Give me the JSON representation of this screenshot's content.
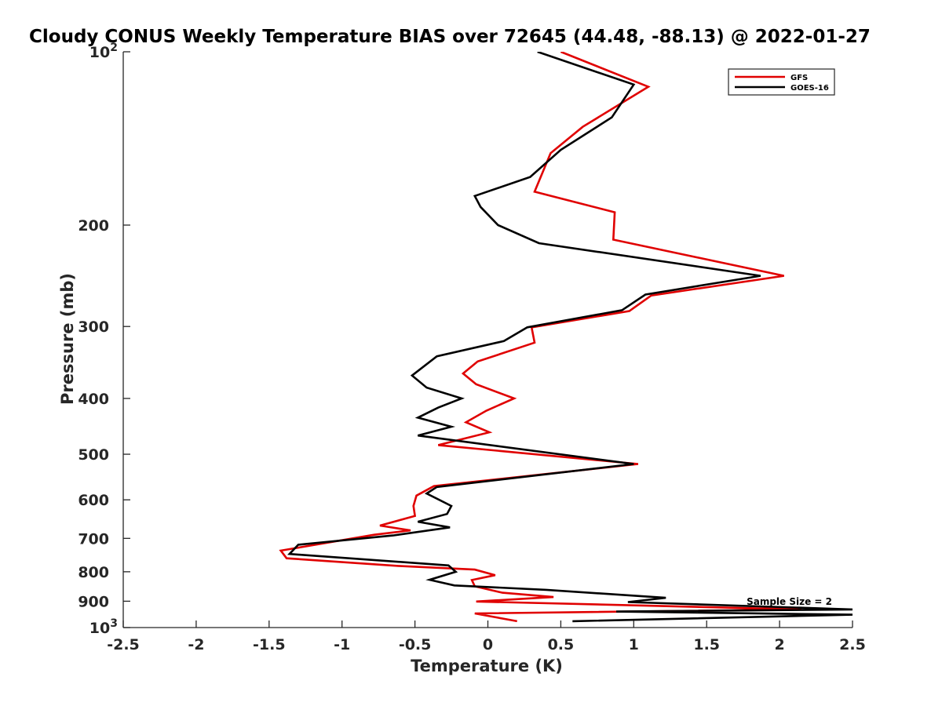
{
  "chart_data": {
    "type": "line",
    "title": "Cloudy CONUS Weekly Temperature BIAS over 72645 (44.48, -88.13) @ 2022-01-27",
    "xlabel": "Temperature (K)",
    "ylabel": "Pressure (mb)",
    "xlim": [
      -2.5,
      2.5
    ],
    "ylim": [
      100,
      1000
    ],
    "y_scale": "log",
    "y_reversed": true,
    "x_ticks": [
      "-2.5",
      "-2",
      "-1.5",
      "-1",
      "-0.5",
      "0",
      "0.5",
      "1",
      "1.5",
      "2",
      "2.5"
    ],
    "x_tick_values": [
      -2.5,
      -2,
      -1.5,
      -1,
      -0.5,
      0,
      0.5,
      1,
      1.5,
      2,
      2.5
    ],
    "y_ticks": [
      {
        "value": 100,
        "base": "10",
        "exp": "2"
      },
      {
        "value": 200,
        "label": "200"
      },
      {
        "value": 300,
        "label": "300"
      },
      {
        "value": 400,
        "label": "400"
      },
      {
        "value": 500,
        "label": "500"
      },
      {
        "value": 600,
        "label": "600"
      },
      {
        "value": 700,
        "label": "700"
      },
      {
        "value": 800,
        "label": "800"
      },
      {
        "value": 900,
        "label": "900"
      },
      {
        "value": 1000,
        "base": "10",
        "exp": "3"
      }
    ],
    "grid": false,
    "legend_position": "top-right",
    "annotation": "Sample Size = 2",
    "series": [
      {
        "name": "GFS",
        "color": "#e00000",
        "points": [
          [
            0.5,
            100
          ],
          [
            1.1,
            115
          ],
          [
            0.65,
            135
          ],
          [
            0.43,
            150
          ],
          [
            0.32,
            175
          ],
          [
            0.87,
            190
          ],
          [
            0.86,
            212
          ],
          [
            2.03,
            245
          ],
          [
            1.12,
            265
          ],
          [
            0.97,
            282
          ],
          [
            0.3,
            301
          ],
          [
            0.32,
            320
          ],
          [
            -0.07,
            345
          ],
          [
            -0.17,
            362
          ],
          [
            -0.08,
            378
          ],
          [
            0.18,
            400
          ],
          [
            -0.01,
            420
          ],
          [
            -0.15,
            440
          ],
          [
            0.01,
            458
          ],
          [
            -0.34,
            482
          ],
          [
            1.03,
            520
          ],
          [
            -0.37,
            568
          ],
          [
            -0.49,
            590
          ],
          [
            -0.51,
            615
          ],
          [
            -0.5,
            640
          ],
          [
            -0.74,
            665
          ],
          [
            -0.53,
            678
          ],
          [
            -0.78,
            690
          ],
          [
            -1.42,
            735
          ],
          [
            -1.38,
            758
          ],
          [
            -0.6,
            782
          ],
          [
            -0.09,
            793
          ],
          [
            0.05,
            811
          ],
          [
            -0.11,
            827
          ],
          [
            -0.09,
            848
          ],
          [
            0.1,
            870
          ],
          [
            0.45,
            885
          ],
          [
            -0.08,
            901
          ],
          [
            2.15,
            930
          ],
          [
            -0.09,
            945
          ],
          [
            0.2,
            975
          ]
        ]
      },
      {
        "name": "GOES-16",
        "color": "#000000",
        "points": [
          [
            0.34,
            100
          ],
          [
            1.0,
            114
          ],
          [
            0.85,
            130
          ],
          [
            0.5,
            148
          ],
          [
            0.29,
            165
          ],
          [
            -0.09,
            178
          ],
          [
            -0.05,
            186
          ],
          [
            0.07,
            200
          ],
          [
            0.35,
            215
          ],
          [
            1.87,
            245
          ],
          [
            1.08,
            264
          ],
          [
            0.92,
            281
          ],
          [
            0.27,
            301
          ],
          [
            0.11,
            318
          ],
          [
            -0.35,
            338
          ],
          [
            -0.52,
            365
          ],
          [
            -0.42,
            383
          ],
          [
            -0.18,
            400
          ],
          [
            -0.34,
            415
          ],
          [
            -0.48,
            432
          ],
          [
            -0.25,
            448
          ],
          [
            -0.48,
            464
          ],
          [
            1.0,
            520
          ],
          [
            -0.35,
            570
          ],
          [
            -0.42,
            585
          ],
          [
            -0.25,
            615
          ],
          [
            -0.28,
            635
          ],
          [
            -0.48,
            655
          ],
          [
            -0.26,
            670
          ],
          [
            -0.65,
            692
          ],
          [
            -1.3,
            718
          ],
          [
            -1.36,
            745
          ],
          [
            -0.27,
            780
          ],
          [
            -0.22,
            800
          ],
          [
            -0.4,
            826
          ],
          [
            -0.23,
            845
          ],
          [
            0.4,
            860
          ],
          [
            1.22,
            888
          ],
          [
            0.96,
            903
          ],
          [
            2.5,
            930
          ],
          [
            0.88,
            938
          ],
          [
            2.5,
            950
          ],
          [
            0.58,
            975
          ]
        ]
      }
    ]
  }
}
